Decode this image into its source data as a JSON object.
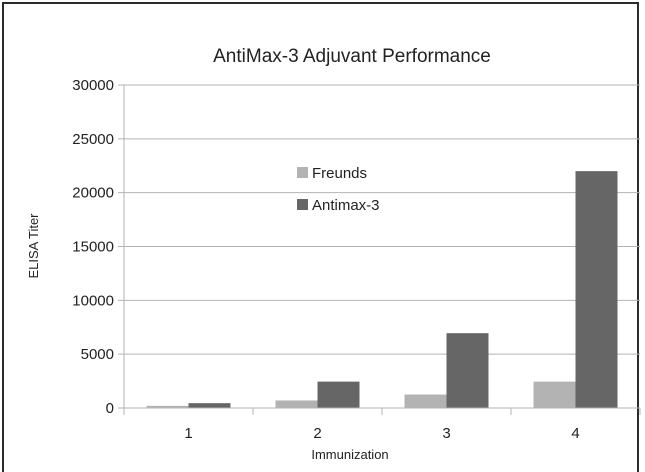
{
  "chart_data": {
    "type": "bar",
    "title": "AntiMax-3 Adjuvant Performance",
    "xlabel": "Immunization",
    "ylabel": "ELISA Titer",
    "categories": [
      "1",
      "2",
      "3",
      "4"
    ],
    "ylim": [
      0,
      30000
    ],
    "yticks": [
      "0",
      "5000",
      "10000",
      "15000",
      "20000",
      "25000",
      "30000"
    ],
    "grid": true,
    "legend_position": "center-top",
    "series": [
      {
        "name": "Freunds",
        "color": "#b3b3b3",
        "values": [
          200,
          700,
          1250,
          2450
        ]
      },
      {
        "name": "Antimax-3",
        "color": "#666666",
        "values": [
          450,
          2450,
          6950,
          22000
        ]
      }
    ]
  }
}
